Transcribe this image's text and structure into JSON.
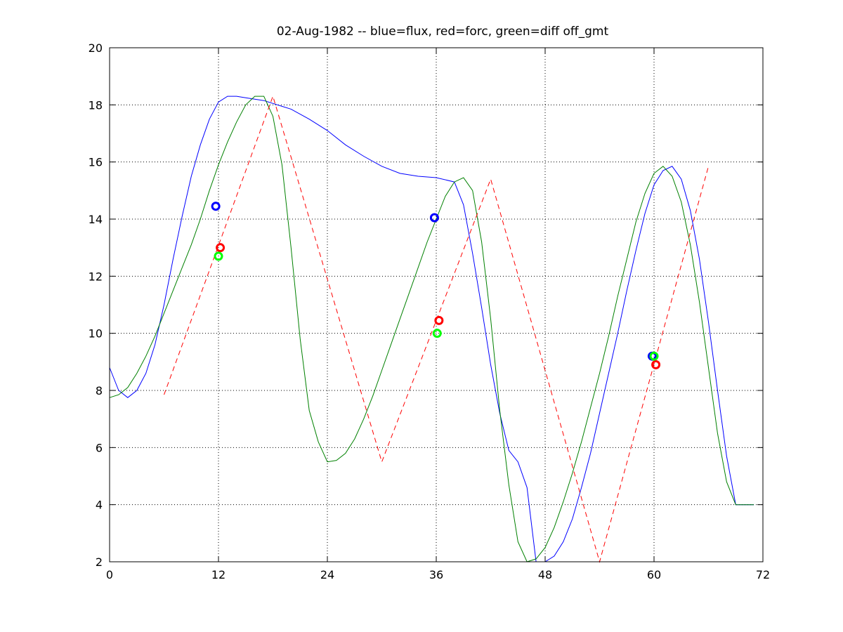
{
  "chart_data": {
    "type": "line",
    "title": "02-Aug-1982 -- blue=flux, red=forc, green=diff off_gmt",
    "xlabel": "",
    "ylabel": "",
    "xlim": [
      0,
      72
    ],
    "ylim": [
      2,
      20
    ],
    "xticks": [
      0,
      12,
      24,
      36,
      48,
      60,
      72
    ],
    "yticks": [
      2,
      4,
      6,
      8,
      10,
      12,
      14,
      16,
      18,
      20
    ],
    "grid": true,
    "series": [
      {
        "color": "#0000ff",
        "style": "solid",
        "x": [
          0,
          1,
          2,
          3,
          4,
          5,
          6,
          7,
          8,
          9,
          10,
          11,
          12,
          13,
          14,
          15,
          16,
          17,
          18,
          19,
          20,
          22,
          24,
          26,
          28,
          30,
          32,
          34,
          36,
          38,
          39,
          40,
          41,
          42,
          43,
          44,
          45,
          46,
          47,
          48,
          49,
          50,
          51,
          52,
          53,
          54,
          55,
          56,
          57,
          58,
          59,
          60,
          61,
          62,
          63,
          64,
          65,
          66,
          67,
          68,
          69,
          70,
          71
        ],
        "y": [
          8.8,
          8.0,
          7.75,
          8.0,
          8.6,
          9.6,
          11.0,
          12.6,
          14.1,
          15.5,
          16.6,
          17.5,
          18.1,
          18.3,
          18.3,
          18.25,
          18.2,
          18.15,
          18.05,
          17.95,
          17.85,
          17.5,
          17.1,
          16.6,
          16.2,
          15.85,
          15.6,
          15.5,
          15.45,
          15.3,
          14.5,
          12.8,
          10.9,
          8.9,
          7.2,
          5.9,
          5.5,
          4.6,
          2.0,
          2.0,
          2.2,
          2.7,
          3.5,
          4.6,
          5.8,
          7.2,
          8.6,
          10.0,
          11.5,
          12.9,
          14.2,
          15.2,
          15.7,
          15.85,
          15.4,
          14.3,
          12.6,
          10.4,
          8.0,
          5.7,
          4.0,
          4.0,
          4.0
        ]
      },
      {
        "color": "#008000",
        "style": "solid",
        "x": [
          0,
          1,
          2,
          3,
          4,
          5,
          6,
          7,
          8,
          9,
          10,
          11,
          12,
          13,
          14,
          15,
          16,
          17,
          18,
          19,
          20,
          21,
          22,
          23,
          24,
          25,
          26,
          27,
          28,
          29,
          30,
          31,
          32,
          33,
          34,
          35,
          36,
          37,
          38,
          39,
          40,
          41,
          42,
          43,
          44,
          45,
          46,
          47,
          48,
          49,
          50,
          51,
          52,
          53,
          54,
          55,
          56,
          57,
          58,
          59,
          60,
          61,
          62,
          63,
          64,
          65,
          66,
          67,
          68,
          69,
          70,
          71
        ],
        "y": [
          7.75,
          7.85,
          8.1,
          8.6,
          9.2,
          9.9,
          10.7,
          11.5,
          12.3,
          13.1,
          14.0,
          15.0,
          15.9,
          16.7,
          17.4,
          18.0,
          18.3,
          18.3,
          17.6,
          15.9,
          13.0,
          9.8,
          7.3,
          6.2,
          5.5,
          5.55,
          5.8,
          6.3,
          7.0,
          7.8,
          8.7,
          9.6,
          10.5,
          11.4,
          12.3,
          13.2,
          14.0,
          14.8,
          15.3,
          15.45,
          15.0,
          13.2,
          10.5,
          7.3,
          4.7,
          2.7,
          2.0,
          2.1,
          2.5,
          3.2,
          4.1,
          5.1,
          6.2,
          7.4,
          8.6,
          9.9,
          11.3,
          12.6,
          13.9,
          14.9,
          15.6,
          15.85,
          15.5,
          14.6,
          13.1,
          11.1,
          8.8,
          6.5,
          4.8,
          4.0,
          4.0,
          4.0
        ]
      },
      {
        "color": "#ff0000",
        "style": "dashed",
        "x": [
          6,
          18,
          30,
          42,
          54,
          66
        ],
        "y": [
          7.85,
          18.3,
          5.5,
          15.4,
          2.0,
          15.85
        ]
      }
    ],
    "markers": [
      {
        "color": "#0000ff",
        "x": 11.7,
        "y": 14.45
      },
      {
        "color": "#ff0000",
        "x": 12.2,
        "y": 13.0
      },
      {
        "color": "#00ff00",
        "x": 12.0,
        "y": 12.7
      },
      {
        "color": "#0000ff",
        "x": 35.8,
        "y": 14.05
      },
      {
        "color": "#ff0000",
        "x": 36.3,
        "y": 10.45
      },
      {
        "color": "#00ff00",
        "x": 36.1,
        "y": 10.0
      },
      {
        "color": "#0000ff",
        "x": 59.8,
        "y": 9.2
      },
      {
        "color": "#ff0000",
        "x": 60.2,
        "y": 8.9
      },
      {
        "color": "#00ff00",
        "x": 60.0,
        "y": 9.2
      }
    ]
  }
}
